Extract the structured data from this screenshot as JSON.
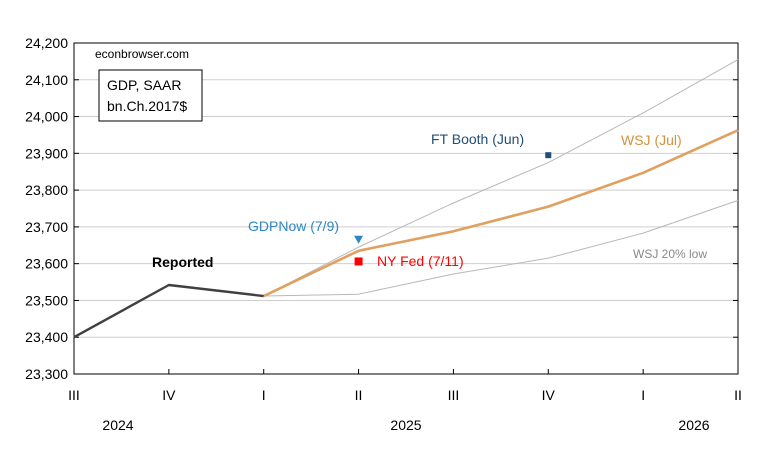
{
  "chart_data": {
    "type": "line",
    "source_label": "econbrowser.com",
    "legend_box": [
      "GDP, SAAR",
      "bn.Ch.2017$"
    ],
    "ylim": [
      23300,
      24200
    ],
    "y_ticks": [
      "23,300",
      "23,400",
      "23,500",
      "23,600",
      "23,700",
      "23,800",
      "23,900",
      "24,000",
      "24,100",
      "24,200"
    ],
    "x_quarter_labels": [
      "III",
      "IV",
      "I",
      "II",
      "III",
      "IV",
      "I",
      "II"
    ],
    "x_year_labels": [
      "2024",
      "2025",
      "2026"
    ],
    "grid": "horizontal",
    "series": [
      {
        "name": "Reported",
        "color": "#404040",
        "points": [
          [
            "2024Q3",
            23400
          ],
          [
            "2024Q4",
            23542
          ],
          [
            "2025Q1",
            23512
          ]
        ]
      },
      {
        "name": "WSJ (Jul)",
        "color": "#e0a060",
        "points": [
          [
            "2025Q1",
            23512
          ],
          [
            "2025Q2",
            23635
          ],
          [
            "2025Q3",
            23688
          ],
          [
            "2025Q4",
            23755
          ],
          [
            "2026Q1",
            23847
          ],
          [
            "2026Q2",
            23963
          ]
        ]
      },
      {
        "name": "",
        "color": "#b8b8b8",
        "points": [
          [
            "2025Q1",
            23512
          ],
          [
            "2025Q2",
            23645
          ],
          [
            "2025Q3",
            23765
          ],
          [
            "2025Q4",
            23875
          ],
          [
            "2026Q1",
            24010
          ],
          [
            "2026Q2",
            24155
          ]
        ]
      },
      {
        "name": "WSJ 20% low",
        "color": "#b8b8b8",
        "points": [
          [
            "2025Q1",
            23512
          ],
          [
            "2025Q2",
            23517
          ],
          [
            "2025Q3",
            23572
          ],
          [
            "2025Q4",
            23615
          ],
          [
            "2026Q1",
            23683
          ],
          [
            "2026Q2",
            23772
          ]
        ]
      }
    ],
    "markers": [
      {
        "name": "GDPNow (7/9)",
        "x": "2025Q2",
        "y": 23665,
        "shape": "triangle-down",
        "color": "#2e86c1"
      },
      {
        "name": "NY Fed (7/11)",
        "x": "2025Q2",
        "y": 23606,
        "shape": "square",
        "color": "#ff0000"
      },
      {
        "name": "FT Booth (Jun)",
        "x": "2025Q4",
        "y": 23895,
        "shape": "square",
        "color": "#1f4e79"
      }
    ],
    "annotations": [
      {
        "text": "Reported",
        "color": "#000000",
        "bold": true
      },
      {
        "text": "GDPNow (7/9)",
        "color": "#2e86c1"
      },
      {
        "text": "NY Fed (7/11)",
        "color": "#ff0000"
      },
      {
        "text": "FT Booth (Jun)",
        "color": "#1f4e79"
      },
      {
        "text": "WSJ (Jul)",
        "color": "#d4923a"
      },
      {
        "text": "WSJ 20% low",
        "color": "#888888"
      }
    ]
  }
}
